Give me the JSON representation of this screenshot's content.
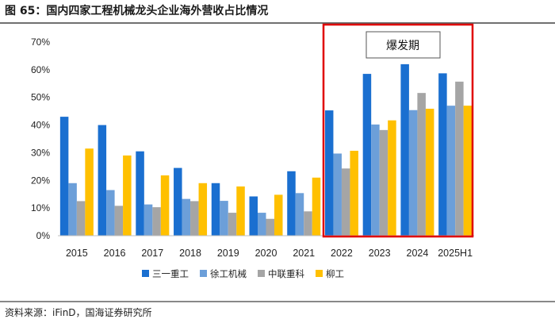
{
  "figure_title": "图 65：国内四家工程机械龙头企业海外营收占比情况",
  "source": "资料来源：iFinD，国海证券研究所",
  "annotation": "爆发期",
  "colors": {
    "series": [
      "#1a6fd0",
      "#6c9fd9",
      "#a5a5a5",
      "#ffc000"
    ],
    "highlight_box": "#e00000",
    "rule": "#404040"
  },
  "chart_data": {
    "type": "bar",
    "title": "",
    "xlabel": "",
    "ylabel": "",
    "ylim": [
      0,
      70
    ],
    "yticks": [
      0,
      10,
      20,
      30,
      40,
      50,
      60,
      70
    ],
    "ytick_suffix": "%",
    "grid": false,
    "legend_position": "bottom",
    "categories": [
      "2015",
      "2016",
      "2017",
      "2018",
      "2019",
      "2020",
      "2021",
      "2022",
      "2023",
      "2024",
      "2025H1"
    ],
    "highlight_categories": [
      "2022",
      "2023",
      "2024",
      "2025H1"
    ],
    "series": [
      {
        "name": "三一重工",
        "values": [
          43,
          40,
          30.5,
          24.5,
          19,
          14.2,
          23.3,
          45.3,
          58.5,
          62,
          58.7
        ]
      },
      {
        "name": "徐工机械",
        "values": [
          19,
          16.5,
          11.3,
          13.3,
          12.6,
          8.3,
          15.4,
          29.7,
          40.2,
          45.4,
          47
        ]
      },
      {
        "name": "中联重科",
        "values": [
          12.5,
          10.8,
          10.3,
          12.5,
          8.3,
          6.1,
          8.8,
          24.3,
          38.2,
          51.6,
          55.7
        ]
      },
      {
        "name": "柳工",
        "values": [
          31.5,
          29,
          21.8,
          19,
          17.8,
          14.8,
          21,
          30.7,
          41.7,
          45.9,
          47
        ]
      }
    ]
  }
}
